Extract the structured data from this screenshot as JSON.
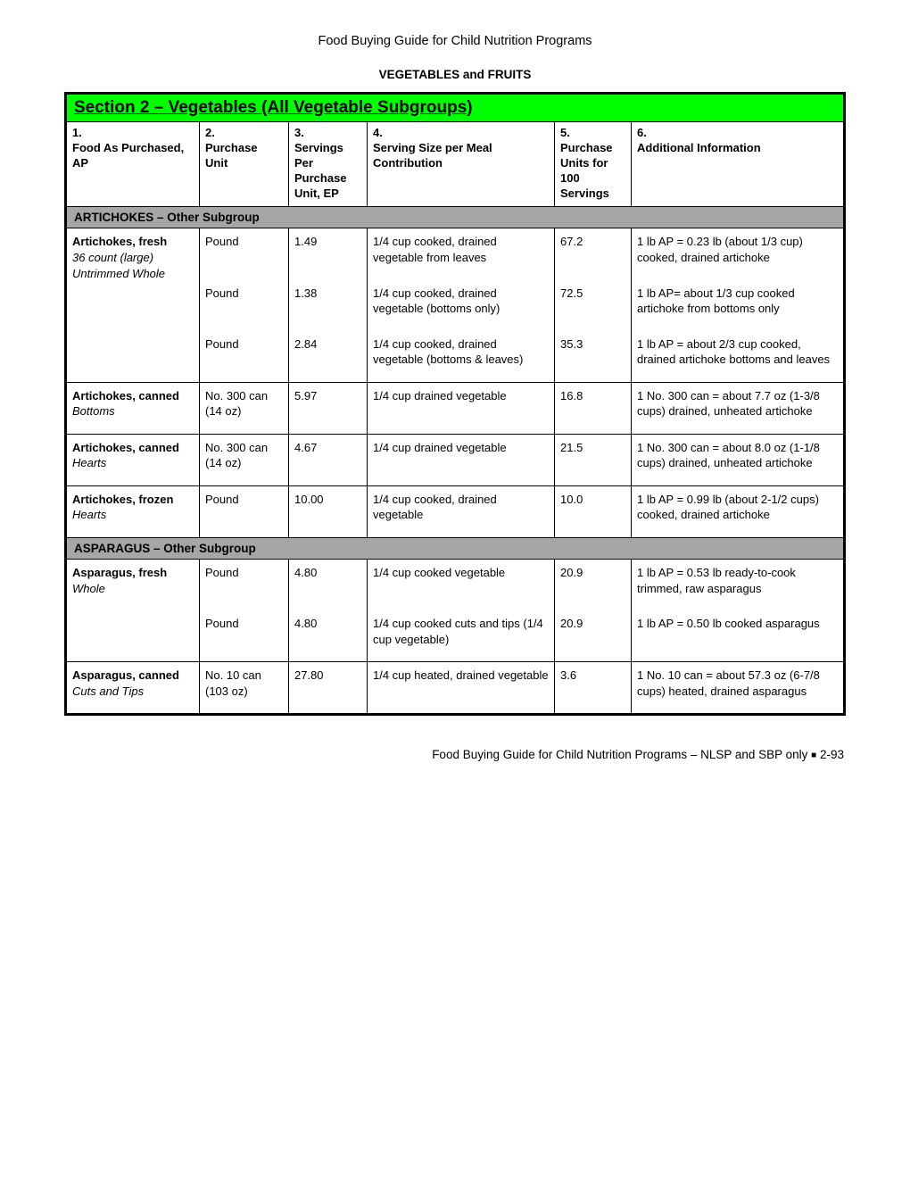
{
  "doc_title": "Food Buying Guide for Child Nutrition Programs",
  "section_label": "VEGETABLES and FRUITS",
  "section_header": "Section 2 – Vegetables (All Vegetable Subgroups)",
  "columns": {
    "c1": "1.\nFood As Purchased, AP",
    "c2": "2.\nPurchase Unit",
    "c3": "3.\nServings Per Purchase Unit, EP",
    "c4": "4.\nServing Size per Meal Contribution",
    "c5": "5.\nPurchase Units for 100 Servings",
    "c6": "6.\nAdditional Information"
  },
  "subgroups": [
    {
      "title": "ARTICHOKES – Other Subgroup",
      "foods": [
        {
          "name_lines": [
            {
              "text": "Artichokes, fresh",
              "style": "bold"
            },
            {
              "text": "36 count (large)",
              "style": "ital"
            },
            {
              "text": "Untrimmed Whole",
              "style": "ital"
            }
          ],
          "rows": [
            {
              "unit": "Pound",
              "servings": "1.49",
              "size": "1/4 cup cooked, drained vegetable from leaves",
              "per100": "67.2",
              "info": "1 lb AP = 0.23 lb (about 1/3 cup) cooked, drained artichoke"
            },
            {
              "unit": "Pound",
              "servings": "1.38",
              "size": "1/4 cup cooked, drained vegetable (bottoms only)",
              "per100": "72.5",
              "info": "1 lb AP= about 1/3 cup cooked artichoke from bottoms only"
            },
            {
              "unit": "Pound",
              "servings": "2.84",
              "size": "1/4 cup cooked, drained vegetable (bottoms & leaves)",
              "per100": "35.3",
              "info": "1 lb AP = about 2/3 cup cooked, drained artichoke bottoms and leaves"
            }
          ]
        },
        {
          "name_lines": [
            {
              "text": "Artichokes, canned",
              "style": "bold"
            },
            {
              "text": "Bottoms",
              "style": "ital"
            }
          ],
          "rows": [
            {
              "unit": "No. 300 can (14 oz)",
              "servings": "5.97",
              "size": "1/4 cup drained vegetable",
              "per100": "16.8",
              "info": "1 No. 300 can = about 7.7 oz (1-3/8 cups) drained, unheated artichoke"
            }
          ]
        },
        {
          "name_lines": [
            {
              "text": "Artichokes, canned",
              "style": "bold"
            },
            {
              "text": "Hearts",
              "style": "ital"
            }
          ],
          "rows": [
            {
              "unit": "No. 300 can (14 oz)",
              "servings": "4.67",
              "size": "1/4 cup drained vegetable",
              "per100": "21.5",
              "info": "1 No. 300 can = about 8.0 oz (1-1/8 cups) drained, unheated artichoke"
            }
          ]
        },
        {
          "name_lines": [
            {
              "text": "Artichokes, frozen",
              "style": "bold"
            },
            {
              "text": "Hearts",
              "style": "ital"
            }
          ],
          "rows": [
            {
              "unit": "Pound",
              "servings": "10.00",
              "size": "1/4 cup cooked, drained vegetable",
              "per100": "10.0",
              "info": "1 lb AP = 0.99 lb (about 2-1/2 cups) cooked, drained artichoke"
            }
          ]
        }
      ]
    },
    {
      "title": "ASPARAGUS – Other Subgroup",
      "foods": [
        {
          "name_lines": [
            {
              "text": "Asparagus, fresh",
              "style": "bold"
            },
            {
              "text": "Whole",
              "style": "ital"
            }
          ],
          "rows": [
            {
              "unit": "Pound",
              "servings": "4.80",
              "size": "1/4 cup cooked vegetable",
              "per100": "20.9",
              "info": "1 lb AP = 0.53 lb ready-to-cook trimmed, raw asparagus"
            },
            {
              "unit": "Pound",
              "servings": "4.80",
              "size": "1/4 cup cooked cuts and tips (1/4 cup vegetable)",
              "per100": "20.9",
              "info": "1 lb AP = 0.50 lb cooked asparagus"
            }
          ]
        },
        {
          "name_lines": [
            {
              "text": "Asparagus, canned",
              "style": "bold"
            },
            {
              "text": "Cuts and Tips",
              "style": "ital"
            }
          ],
          "rows": [
            {
              "unit": "No. 10 can (103 oz)",
              "servings": "27.80",
              "size": "1/4 cup heated, drained vegetable",
              "per100": "3.6",
              "info": "1 No. 10 can = about 57.3 oz (6-7/8 cups) heated, drained asparagus"
            }
          ]
        }
      ]
    }
  ],
  "footer": "Food Buying Guide for Child Nutrition Programs – NLSP and SBP only ■ 2-93"
}
